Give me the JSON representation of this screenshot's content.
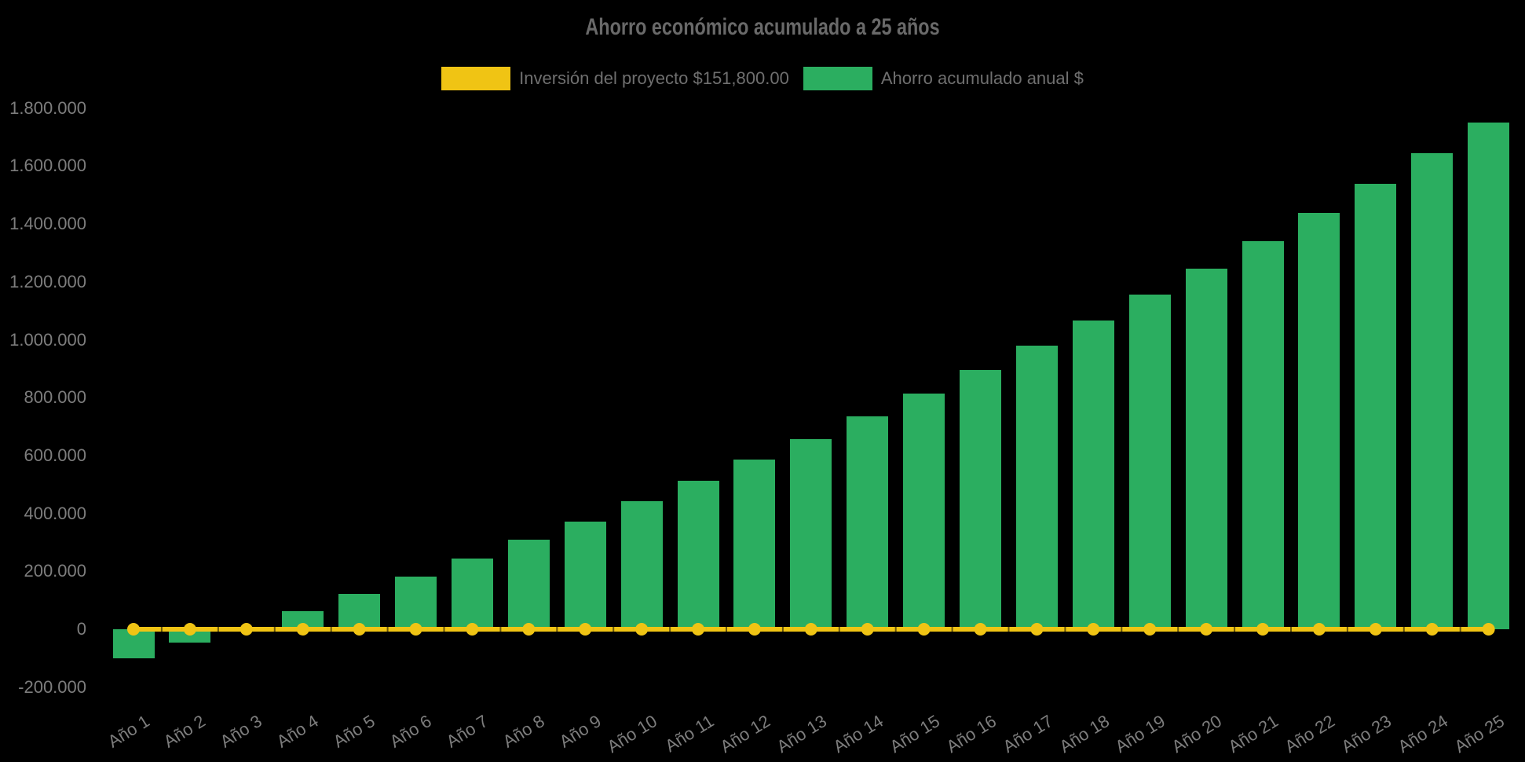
{
  "title": "Ahorro económico acumulado a 25 años",
  "legend": [
    {
      "label": "Inversión del proyecto $151,800.00",
      "color": "#F0C414"
    },
    {
      "label": "Ahorro acumulado anual $",
      "color": "#2BAE60"
    }
  ],
  "colors": {
    "background": "#000000",
    "investment_line": "#F0C414",
    "savings_bar": "#2BAE60",
    "title_text": "#696969",
    "axis_text": "#7d7d7d",
    "legend_text": "#6f6f6f"
  },
  "chart_data": {
    "type": "bar",
    "title": "Ahorro económico acumulado a 25 años",
    "xlabel": "",
    "ylabel": "",
    "legend_position": "top",
    "grid": false,
    "background": "#000000",
    "y_tick_interval": 200000,
    "ylim": [
      -280000,
      1870000
    ],
    "y_ticks": [
      {
        "value": 1800000,
        "label": "1.800.000"
      },
      {
        "value": 1600000,
        "label": "1.600.000"
      },
      {
        "value": 1400000,
        "label": "1.400.000"
      },
      {
        "value": 1200000,
        "label": "1.200.000"
      },
      {
        "value": 1000000,
        "label": "1.000.000"
      },
      {
        "value": 800000,
        "label": "800.000"
      },
      {
        "value": 600000,
        "label": "600.000"
      },
      {
        "value": 400000,
        "label": "400.000"
      },
      {
        "value": 200000,
        "label": "200.000"
      },
      {
        "value": 0,
        "label": "0"
      },
      {
        "value": -200000,
        "label": "-200.000"
      }
    ],
    "categories": [
      "Año 1",
      "Año 2",
      "Año 3",
      "Año 4",
      "Año 5",
      "Año 6",
      "Año 7",
      "Año 8",
      "Año 9",
      "Año 10",
      "Año 11",
      "Año 12",
      "Año 13",
      "Año 14",
      "Año 15",
      "Año 16",
      "Año 17",
      "Año 18",
      "Año 19",
      "Año 20",
      "Año 21",
      "Año 22",
      "Año 23",
      "Año 24",
      "Año 25"
    ],
    "series": [
      {
        "name": "Inversión del proyecto $151,800.00",
        "type": "line",
        "color": "#F0C414",
        "marker": "circle",
        "stated_value": "$151,800.00",
        "plotted_value_per_year": 0
      },
      {
        "name": "Ahorro acumulado anual $",
        "type": "bar",
        "color": "#2BAE60",
        "values": [
          -100000,
          -47000,
          6000,
          62000,
          122000,
          182000,
          245000,
          309000,
          372000,
          442000,
          512000,
          585000,
          658000,
          735000,
          815000,
          895000,
          980000,
          1067000,
          1157000,
          1247000,
          1341000,
          1439000,
          1540000,
          1644000,
          1751000
        ]
      }
    ]
  }
}
